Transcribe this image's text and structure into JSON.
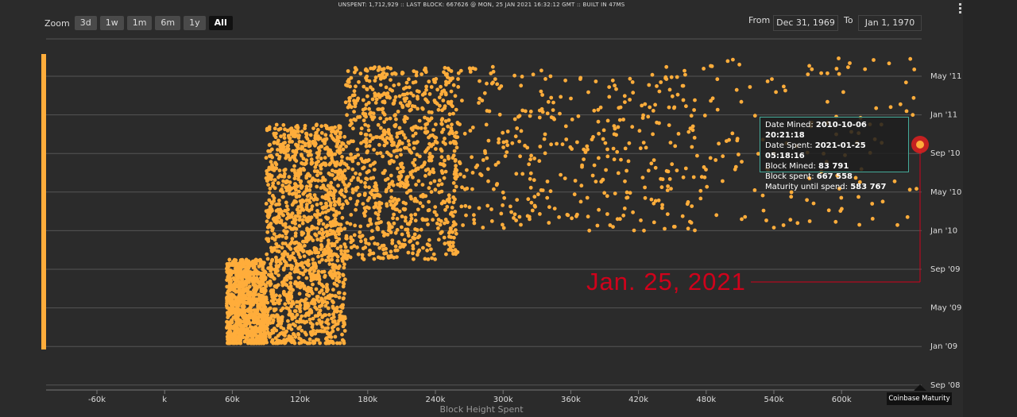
{
  "header": {
    "status": "UNSPENT: 1,712,929 :: LAST BLOCK: 667626 @ MON, 25 JAN 2021 16:32:12 GMT :: BUILT IN 47MS"
  },
  "zoom": {
    "label": "Zoom",
    "buttons": [
      "3d",
      "1w",
      "1m",
      "6m",
      "1y",
      "All"
    ],
    "active": "All"
  },
  "range": {
    "from_label": "From",
    "from_value": "Dec 31, 1969",
    "to_label": "To",
    "to_value": "Jan 1, 1970"
  },
  "tooltip": {
    "date_mined_label": "Date Mined:",
    "date_mined": "2010-10-06 20:21:18",
    "date_spent_label": "Date Spent:",
    "date_spent": "2021-01-25 05:18:16",
    "block_mined_label": "Block Mined:",
    "block_mined": "83 791",
    "block_spent_label": "Block spent:",
    "block_spent": "667 558",
    "maturity_label": "Maturity until spend:",
    "maturity": "583 767"
  },
  "annotation": "Jan. 25, 2021",
  "coinbase_label": "Coinbase Maturity",
  "colors": {
    "points": "#ffad3b",
    "annotation": "#d0021b",
    "grid": "#555555",
    "highlight": "#e02020"
  },
  "chart_data": {
    "type": "scatter",
    "xlabel": "Block Height Spent",
    "ylabel": "",
    "xticks": [
      "-60k",
      "k",
      "60k",
      "120k",
      "180k",
      "240k",
      "300k",
      "360k",
      "420k",
      "480k",
      "540k",
      "600k"
    ],
    "yticks": [
      "May '11",
      "Jan '11",
      "Sep '10",
      "May '10",
      "Jan '10",
      "Sep '09",
      "May '09",
      "Jan '09",
      "Sep '08"
    ],
    "xlim": [
      -100000,
      660000
    ],
    "highlight_point": {
      "x": 667558,
      "y": "2010-10-06"
    },
    "clusters": [
      {
        "x_range": [
          55000,
          90000
        ],
        "y_range": [
          "2009-01",
          "2009-10"
        ],
        "density": "high"
      },
      {
        "x_range": [
          90000,
          160000
        ],
        "y_range": [
          "2009-01",
          "2010-12"
        ],
        "density": "very high"
      },
      {
        "x_range": [
          160000,
          260000
        ],
        "y_range": [
          "2009-10",
          "2011-06"
        ],
        "density": "high"
      },
      {
        "x_range": [
          260000,
          480000
        ],
        "y_range": [
          "2010-01",
          "2011-06"
        ],
        "density": "medium"
      },
      {
        "x_range": [
          480000,
          667000
        ],
        "y_range": [
          "2010-01",
          "2011-07"
        ],
        "density": "low"
      }
    ]
  }
}
